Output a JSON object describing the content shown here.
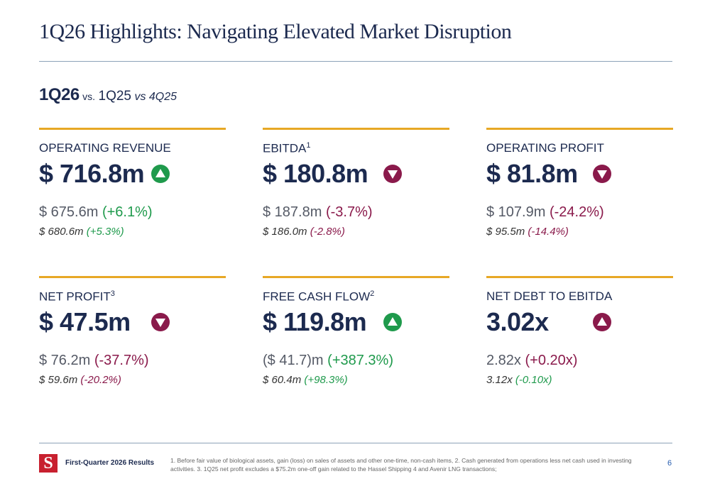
{
  "header": {
    "title": "1Q26 Highlights: Navigating Elevated Market Disruption"
  },
  "period": {
    "current": "1Q26",
    "vs": "vs.",
    "prior": "1Q25",
    "previous": "vs 4Q25"
  },
  "cards": [
    {
      "label": "OPERATING REVENUE",
      "value": "$ 716.8m",
      "arrow": {
        "direction": "up",
        "color": "#1f9a4c"
      },
      "prior": {
        "value": "$ 675.6m",
        "change": "(+6.1%)",
        "color": "#1f9a4c"
      },
      "previous": {
        "value": "$ 680.6m",
        "change": "(+5.3%)",
        "color": "#1f9a4c"
      }
    },
    {
      "label": "EBITDA",
      "note": "1",
      "value": "$ 180.8m",
      "arrow": {
        "direction": "down",
        "color": "#8a1a4b"
      },
      "prior": {
        "value": "$ 187.8m",
        "change": "(-3.7%)",
        "color": "#8a1a4b"
      },
      "previous": {
        "value": "$ 186.0m",
        "change": "(-2.8%)",
        "color": "#8a1a4b"
      }
    },
    {
      "label": "OPERATING PROFIT",
      "value": "$ 81.8m",
      "arrow": {
        "direction": "down",
        "color": "#8a1a4b"
      },
      "prior": {
        "value": "$ 107.9m",
        "change": "(-24.2%)",
        "color": "#8a1a4b"
      },
      "previous": {
        "value": "$ 95.5m",
        "change": "(-14.4%)",
        "color": "#8a1a4b"
      }
    },
    {
      "label": "NET PROFIT",
      "note": "3",
      "value": "$ 47.5m",
      "arrow": {
        "direction": "down",
        "color": "#8a1a4b"
      },
      "prior": {
        "value": "$ 76.2m",
        "change": "(-37.7%)",
        "color": "#8a1a4b"
      },
      "previous": {
        "value": "$ 59.6m",
        "change": "(-20.2%)",
        "color": "#8a1a4b"
      }
    },
    {
      "label": "FREE CASH FLOW",
      "note": "2",
      "value": "$ 119.8m",
      "arrow": {
        "direction": "up",
        "color": "#1f9a4c"
      },
      "prior": {
        "value": "($ 41.7)m",
        "change": "(+387.3%)",
        "color": "#1f9a4c"
      },
      "previous": {
        "value": "$ 60.4m",
        "change": "(+98.3%)",
        "color": "#1f9a4c"
      }
    },
    {
      "label": "NET DEBT TO EBITDA",
      "value": "3.02x",
      "arrow": {
        "direction": "up",
        "color": "#8a1a4b"
      },
      "prior": {
        "value": "2.82x",
        "change": "(+0.20x)",
        "color": "#8a1a4b"
      },
      "previous": {
        "value": "3.12x",
        "change": "(-0.10x)",
        "color": "#1f9a4c"
      }
    }
  ],
  "footer": {
    "logo": "S",
    "report": "First-Quarter 2026 Results",
    "footnote": "1. Before fair value of biological assets, gain (loss) on sales of assets and other one-time, non-cash items, 2. Cash generated from operations less net cash used in investing activities. 3. 1Q25 net profit excludes a $75.2m one-off gain related to the Hassel Shipping 4 and Avenir LNG transactions;",
    "page": "6"
  }
}
